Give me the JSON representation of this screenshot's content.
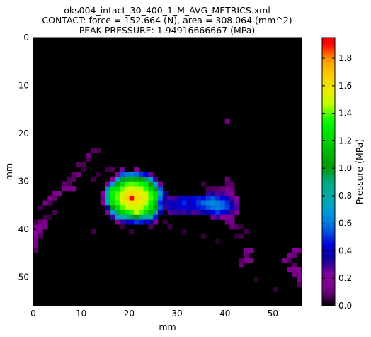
{
  "chart_data": {
    "type": "heatmap",
    "title_lines": [
      "oks004_intact_30_400_1_M_AVG_METRICS.xml",
      "CONTACT: force = 152.664 (N), area = 308.064 (mm^2)",
      "PEAK PRESSURE: 1.94916666667 (MPa)"
    ],
    "xlabel": "mm",
    "ylabel": "mm",
    "colorbar_label": "Pressure (MPa)",
    "xlim": [
      0,
      56
    ],
    "ylim": [
      0,
      56
    ],
    "y_inverted": true,
    "xticks": [
      "0",
      "10",
      "20",
      "30",
      "40",
      "50"
    ],
    "yticks": [
      "0",
      "10",
      "20",
      "30",
      "40",
      "50"
    ],
    "clim": [
      0,
      1.94916666667
    ],
    "cbar_ticks": [
      "0.0",
      "0.2",
      "0.4",
      "0.6",
      "0.8",
      "1.0",
      "1.2",
      "1.4",
      "1.6",
      "1.8"
    ],
    "colormap": "nipy_spectral",
    "background_color": "#000000",
    "grid": false,
    "cells": [
      [
        20,
        33,
        1.94
      ],
      [
        19,
        33,
        1.7
      ],
      [
        20,
        32,
        1.68
      ],
      [
        21,
        33,
        1.66
      ],
      [
        20,
        34,
        1.64
      ],
      [
        19,
        32,
        1.62
      ],
      [
        21,
        32,
        1.62
      ],
      [
        22,
        33,
        1.6
      ],
      [
        19,
        34,
        1.58
      ],
      [
        21,
        34,
        1.6
      ],
      [
        22,
        32,
        1.58
      ],
      [
        18,
        33,
        1.55
      ],
      [
        20,
        31,
        1.55
      ],
      [
        22,
        34,
        1.56
      ],
      [
        18,
        32,
        1.5
      ],
      [
        18,
        34,
        1.5
      ],
      [
        19,
        31,
        1.52
      ],
      [
        21,
        31,
        1.52
      ],
      [
        20,
        35,
        1.52
      ],
      [
        21,
        35,
        1.52
      ],
      [
        22,
        35,
        1.5
      ],
      [
        19,
        35,
        1.48
      ],
      [
        23,
        33,
        1.55
      ],
      [
        23,
        32,
        1.52
      ],
      [
        23,
        34,
        1.48
      ],
      [
        22,
        31,
        1.48
      ],
      [
        17,
        32,
        1.4
      ],
      [
        17,
        33,
        1.42
      ],
      [
        17,
        34,
        1.38
      ],
      [
        18,
        31,
        1.42
      ],
      [
        18,
        35,
        1.4
      ],
      [
        19,
        30,
        1.4
      ],
      [
        20,
        30,
        1.42
      ],
      [
        21,
        30,
        1.4
      ],
      [
        22,
        30,
        1.36
      ],
      [
        23,
        31,
        1.38
      ],
      [
        23,
        35,
        1.4
      ],
      [
        24,
        32,
        1.38
      ],
      [
        24,
        33,
        1.4
      ],
      [
        24,
        34,
        1.32
      ],
      [
        19,
        36,
        1.3
      ],
      [
        20,
        36,
        1.38
      ],
      [
        21,
        36,
        1.5
      ],
      [
        22,
        36,
        1.4
      ],
      [
        23,
        36,
        1.25
      ],
      [
        24,
        35,
        1.28
      ],
      [
        16,
        31,
        1.25
      ],
      [
        16,
        32,
        1.32
      ],
      [
        16,
        33,
        1.3
      ],
      [
        16,
        34,
        1.26
      ],
      [
        17,
        31,
        1.28
      ],
      [
        17,
        35,
        1.22
      ],
      [
        18,
        30,
        1.25
      ],
      [
        18,
        36,
        1.2
      ],
      [
        23,
        30,
        1.28
      ],
      [
        24,
        31,
        1.2
      ],
      [
        24,
        36,
        1.1
      ],
      [
        25,
        32,
        1.22
      ],
      [
        25,
        33,
        1.25
      ],
      [
        25,
        34,
        1.12
      ],
      [
        25,
        35,
        1.05
      ],
      [
        17,
        30,
        1.08
      ],
      [
        19,
        29,
        1.1
      ],
      [
        20,
        29,
        1.12
      ],
      [
        21,
        29,
        1.1
      ],
      [
        22,
        29,
        1.05
      ],
      [
        18,
        29,
        0.98
      ],
      [
        23,
        29,
        0.95
      ],
      [
        24,
        30,
        1.0
      ],
      [
        25,
        31,
        0.98
      ],
      [
        16,
        35,
        1.0
      ],
      [
        17,
        36,
        0.95
      ],
      [
        19,
        37,
        0.9
      ],
      [
        20,
        37,
        0.95
      ],
      [
        21,
        37,
        1.0
      ],
      [
        22,
        37,
        0.92
      ],
      [
        23,
        37,
        0.85
      ],
      [
        24,
        37,
        0.8
      ],
      [
        25,
        36,
        0.92
      ],
      [
        15,
        31,
        0.65
      ],
      [
        15,
        32,
        0.8
      ],
      [
        15,
        33,
        0.82
      ],
      [
        15,
        34,
        0.75
      ],
      [
        16,
        30,
        0.7
      ],
      [
        16,
        36,
        0.72
      ],
      [
        17,
        29,
        0.68
      ],
      [
        17,
        37,
        0.7
      ],
      [
        18,
        37,
        0.78
      ],
      [
        18,
        28,
        0.55
      ],
      [
        19,
        28,
        0.6
      ],
      [
        20,
        28,
        0.62
      ],
      [
        21,
        28,
        0.58
      ],
      [
        22,
        28,
        0.5
      ],
      [
        23,
        28,
        0.45
      ],
      [
        24,
        29,
        0.68
      ],
      [
        25,
        30,
        0.72
      ],
      [
        26,
        31,
        0.55
      ],
      [
        26,
        32,
        0.72
      ],
      [
        26,
        33,
        0.6
      ],
      [
        26,
        34,
        0.5
      ],
      [
        26,
        35,
        0.55
      ],
      [
        25,
        37,
        0.48
      ],
      [
        24,
        38,
        0.35
      ],
      [
        23,
        38,
        0.4
      ],
      [
        22,
        38,
        0.48
      ],
      [
        21,
        38,
        0.52
      ],
      [
        20,
        38,
        0.45
      ],
      [
        19,
        38,
        0.38
      ],
      [
        18,
        38,
        0.3
      ],
      [
        16,
        37,
        0.3
      ],
      [
        15,
        35,
        0.35
      ],
      [
        14,
        32,
        0.22
      ],
      [
        14,
        33,
        0.26
      ],
      [
        14,
        34,
        0.18
      ],
      [
        15,
        30,
        0.18
      ],
      [
        17,
        28,
        0.2
      ],
      [
        16,
        29,
        0.22
      ],
      [
        18,
        27,
        0.25
      ],
      [
        21,
        27,
        0.2
      ],
      [
        24,
        28,
        0.25
      ],
      [
        25,
        29,
        0.3
      ],
      [
        26,
        30,
        0.25
      ],
      [
        27,
        33,
        0.35
      ],
      [
        27,
        34,
        0.32
      ],
      [
        26,
        36,
        0.38
      ],
      [
        25,
        38,
        0.22
      ],
      [
        15,
        36,
        0.15
      ],
      [
        17,
        38,
        0.15
      ],
      [
        27,
        32,
        0.35
      ],
      [
        28,
        33,
        0.28
      ],
      [
        29,
        33,
        0.3
      ],
      [
        30,
        33,
        0.4
      ],
      [
        31,
        33,
        0.42
      ],
      [
        32,
        33,
        0.4
      ],
      [
        33,
        33,
        0.45
      ],
      [
        34,
        33,
        0.48
      ],
      [
        35,
        33,
        0.45
      ],
      [
        36,
        33,
        0.52
      ],
      [
        37,
        33,
        0.55
      ],
      [
        38,
        33,
        0.5
      ],
      [
        39,
        33,
        0.45
      ],
      [
        40,
        33,
        0.4
      ],
      [
        41,
        33,
        0.28
      ],
      [
        42,
        33,
        0.22
      ],
      [
        27,
        35,
        0.3
      ],
      [
        28,
        34,
        0.42
      ],
      [
        29,
        34,
        0.38
      ],
      [
        30,
        34,
        0.45
      ],
      [
        31,
        34,
        0.5
      ],
      [
        32,
        34,
        0.42
      ],
      [
        33,
        34,
        0.45
      ],
      [
        34,
        34,
        0.52
      ],
      [
        35,
        34,
        0.58
      ],
      [
        36,
        34,
        0.62
      ],
      [
        37,
        34,
        0.65
      ],
      [
        38,
        34,
        0.62
      ],
      [
        39,
        34,
        0.58
      ],
      [
        40,
        34,
        0.5
      ],
      [
        41,
        34,
        0.35
      ],
      [
        42,
        34,
        0.25
      ],
      [
        28,
        35,
        0.38
      ],
      [
        29,
        35,
        0.4
      ],
      [
        30,
        35,
        0.42
      ],
      [
        31,
        35,
        0.45
      ],
      [
        32,
        35,
        0.4
      ],
      [
        33,
        35,
        0.42
      ],
      [
        34,
        35,
        0.48
      ],
      [
        35,
        35,
        0.5
      ],
      [
        36,
        35,
        0.55
      ],
      [
        37,
        35,
        0.6
      ],
      [
        38,
        35,
        0.62
      ],
      [
        39,
        35,
        0.58
      ],
      [
        40,
        35,
        0.52
      ],
      [
        41,
        35,
        0.4
      ],
      [
        42,
        35,
        0.28
      ],
      [
        28,
        36,
        0.28
      ],
      [
        29,
        36,
        0.3
      ],
      [
        30,
        36,
        0.32
      ],
      [
        31,
        36,
        0.3
      ],
      [
        32,
        36,
        0.35
      ],
      [
        33,
        36,
        0.28
      ],
      [
        34,
        36,
        0.3
      ],
      [
        35,
        36,
        0.38
      ],
      [
        36,
        36,
        0.4
      ],
      [
        37,
        36,
        0.45
      ],
      [
        38,
        36,
        0.52
      ],
      [
        39,
        36,
        0.45
      ],
      [
        40,
        36,
        0.38
      ],
      [
        41,
        36,
        0.3
      ],
      [
        42,
        36,
        0.18
      ],
      [
        36,
        32,
        0.3
      ],
      [
        37,
        32,
        0.35
      ],
      [
        38,
        32,
        0.28
      ],
      [
        39,
        32,
        0.3
      ],
      [
        40,
        32,
        0.25
      ],
      [
        41,
        32,
        0.2
      ],
      [
        37,
        37,
        0.25
      ],
      [
        38,
        37,
        0.3
      ],
      [
        39,
        37,
        0.22
      ],
      [
        40,
        37,
        0.2
      ],
      [
        41,
        37,
        0.15
      ],
      [
        40,
        31,
        0.12
      ],
      [
        39,
        31,
        0.1
      ],
      [
        38,
        31,
        0.08
      ],
      [
        41,
        31,
        0.1
      ],
      [
        41,
        38,
        0.12
      ],
      [
        40,
        38,
        0.1
      ],
      [
        40,
        17,
        0.12
      ],
      [
        12,
        23,
        0.08
      ],
      [
        13,
        23,
        0.07
      ],
      [
        11,
        24,
        0.1
      ],
      [
        11,
        25,
        0.07
      ],
      [
        9,
        26,
        0.08
      ],
      [
        10,
        26,
        0.07
      ],
      [
        15,
        27,
        0.06
      ],
      [
        16,
        27,
        0.07
      ],
      [
        8,
        28,
        0.09
      ],
      [
        9,
        28,
        0.12
      ],
      [
        8,
        29,
        0.08
      ],
      [
        7,
        29,
        0.07
      ],
      [
        6,
        30,
        0.09
      ],
      [
        7,
        30,
        0.08
      ],
      [
        8,
        31,
        0.2
      ],
      [
        7,
        31,
        0.12
      ],
      [
        6,
        31,
        0.15
      ],
      [
        5,
        32,
        0.18
      ],
      [
        4,
        32,
        0.12
      ],
      [
        3,
        33,
        0.15
      ],
      [
        4,
        33,
        0.1
      ],
      [
        2,
        34,
        0.12
      ],
      [
        3,
        34,
        0.08
      ],
      [
        1,
        35,
        0.06
      ],
      [
        12,
        29,
        0.06
      ],
      [
        13,
        28,
        0.05
      ],
      [
        10,
        27,
        0.05
      ],
      [
        40,
        29,
        0.1
      ],
      [
        40,
        30,
        0.08
      ],
      [
        41,
        30,
        0.08
      ],
      [
        35,
        30,
        0.06
      ],
      [
        36,
        31,
        0.07
      ],
      [
        37,
        31,
        0.08
      ],
      [
        1,
        38,
        0.1
      ],
      [
        2,
        38,
        0.12
      ],
      [
        0,
        39,
        0.16
      ],
      [
        1,
        39,
        0.18
      ],
      [
        2,
        39,
        0.14
      ],
      [
        0,
        40,
        0.18
      ],
      [
        1,
        40,
        0.12
      ],
      [
        0,
        41,
        0.14
      ],
      [
        0,
        42,
        0.15
      ],
      [
        0,
        43,
        0.12
      ],
      [
        0,
        44,
        0.08
      ],
      [
        1,
        41,
        0.08
      ],
      [
        2,
        37,
        0.06
      ],
      [
        3,
        37,
        0.05
      ],
      [
        4,
        36,
        0.07
      ],
      [
        0,
        38,
        0.06
      ],
      [
        12,
        40,
        0.06
      ],
      [
        18,
        39,
        0.05
      ],
      [
        20,
        40,
        0.05
      ],
      [
        24,
        39,
        0.07
      ],
      [
        28,
        39,
        0.06
      ],
      [
        27,
        38,
        0.05
      ],
      [
        31,
        40,
        0.04
      ],
      [
        35,
        41,
        0.05
      ],
      [
        41,
        39,
        0.1
      ],
      [
        42,
        39,
        0.08
      ],
      [
        43,
        39,
        0.05
      ],
      [
        44,
        40,
        0.06
      ],
      [
        42,
        41,
        0.05
      ],
      [
        43,
        41,
        0.06
      ],
      [
        38,
        42,
        0.04
      ],
      [
        44,
        44,
        0.12
      ],
      [
        45,
        44,
        0.16
      ],
      [
        44,
        45,
        0.1
      ],
      [
        43,
        46,
        0.08
      ],
      [
        44,
        46,
        0.14
      ],
      [
        45,
        46,
        0.12
      ],
      [
        43,
        47,
        0.1
      ],
      [
        54,
        44,
        0.18
      ],
      [
        55,
        44,
        0.12
      ],
      [
        53,
        45,
        0.15
      ],
      [
        54,
        45,
        0.1
      ],
      [
        52,
        46,
        0.14
      ],
      [
        53,
        46,
        0.08
      ],
      [
        54,
        47,
        0.08
      ],
      [
        53,
        48,
        0.14
      ],
      [
        54,
        48,
        0.16
      ],
      [
        55,
        48,
        0.18
      ],
      [
        54,
        49,
        0.12
      ],
      [
        55,
        49,
        0.1
      ],
      [
        55,
        50,
        0.16
      ],
      [
        55,
        51,
        0.08
      ],
      [
        50,
        52,
        0.05
      ],
      [
        46,
        50,
        0.04
      ]
    ]
  }
}
